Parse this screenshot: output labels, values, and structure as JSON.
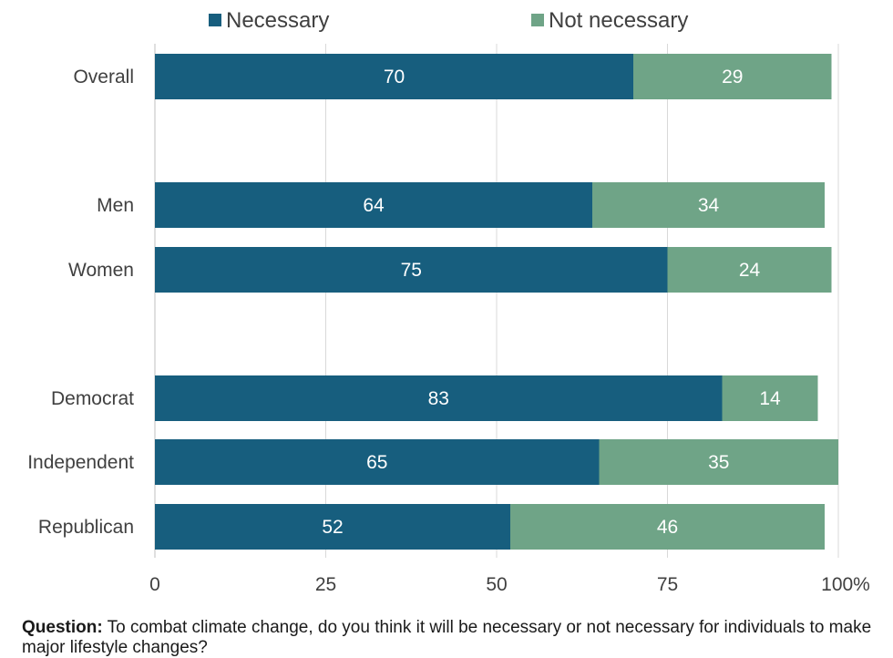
{
  "chart_data": {
    "type": "bar",
    "orientation": "horizontal",
    "stacked": true,
    "categories": [
      "Overall",
      "Men",
      "Women",
      "Democrat",
      "Independent",
      "Republican"
    ],
    "series": [
      {
        "name": "Necessary",
        "values": [
          70,
          64,
          75,
          83,
          65,
          52
        ],
        "color": "#175e7e"
      },
      {
        "name": "Not necessary",
        "values": [
          29,
          34,
          24,
          14,
          35,
          46
        ],
        "color": "#6fa487"
      }
    ],
    "xlim": [
      0,
      100
    ],
    "x_ticks": [
      "0",
      "25",
      "50",
      "75",
      "100%"
    ],
    "grid": true,
    "legend_position": "top"
  },
  "note": {
    "label": "Question:",
    "text": " To combat climate change, do you think it will be necessary or not necessary for individuals to make major lifestyle changes?"
  }
}
